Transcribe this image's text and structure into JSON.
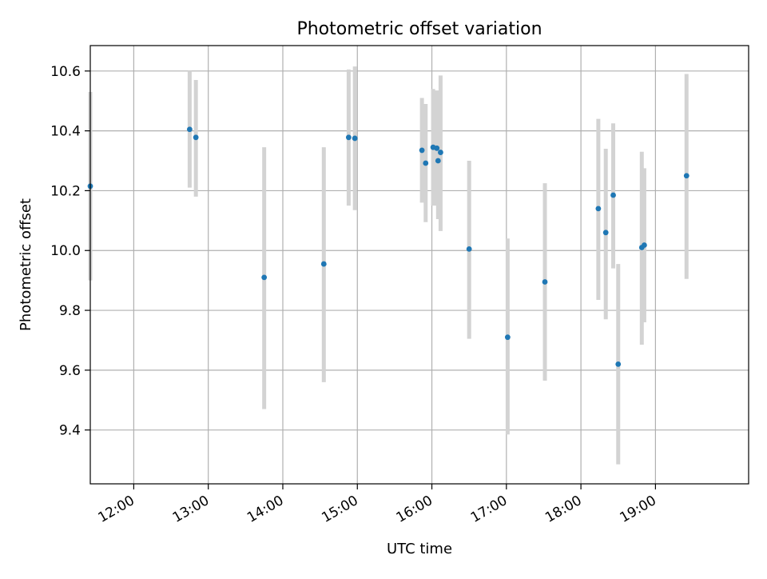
{
  "chart_data": {
    "type": "scatter",
    "title": "Photometric offset variation",
    "xlabel": "UTC time",
    "ylabel": "Photometric offset",
    "x_axis": {
      "kind": "time",
      "range": [
        "11:25",
        "20:15"
      ],
      "ticks": [
        "12:00",
        "13:00",
        "14:00",
        "15:00",
        "16:00",
        "17:00",
        "18:00",
        "19:00"
      ]
    },
    "y_axis": {
      "range": [
        9.22,
        10.685
      ],
      "ticks": [
        "9.4",
        "9.6",
        "9.8",
        "10.0",
        "10.2",
        "10.4",
        "10.6"
      ]
    },
    "grid": true,
    "series": [
      {
        "marker_color": "#1f77b4",
        "errorbar_color": "#d3d3d3",
        "points": [
          {
            "time": "11:25",
            "y": 10.215,
            "lo": 9.9,
            "hi": 10.53
          },
          {
            "time": "12:45",
            "y": 10.405,
            "lo": 10.21,
            "hi": 10.6
          },
          {
            "time": "12:50",
            "y": 10.378,
            "lo": 10.18,
            "hi": 10.57
          },
          {
            "time": "13:45",
            "y": 9.91,
            "lo": 9.47,
            "hi": 10.345
          },
          {
            "time": "14:33",
            "y": 9.955,
            "lo": 9.56,
            "hi": 10.345
          },
          {
            "time": "14:53",
            "y": 10.378,
            "lo": 10.15,
            "hi": 10.605
          },
          {
            "time": "14:58",
            "y": 10.375,
            "lo": 10.135,
            "hi": 10.615
          },
          {
            "time": "15:52",
            "y": 10.335,
            "lo": 10.16,
            "hi": 10.51
          },
          {
            "time": "15:55",
            "y": 10.292,
            "lo": 10.095,
            "hi": 10.49
          },
          {
            "time": "16:01",
            "y": 10.345,
            "lo": 10.15,
            "hi": 10.54
          },
          {
            "time": "16:04",
            "y": 10.342,
            "lo": 10.15,
            "hi": 10.535
          },
          {
            "time": "16:05",
            "y": 10.3,
            "lo": 10.105,
            "hi": 10.53
          },
          {
            "time": "16:07",
            "y": 10.328,
            "lo": 10.065,
            "hi": 10.585
          },
          {
            "time": "16:30",
            "y": 10.005,
            "lo": 9.705,
            "hi": 10.3
          },
          {
            "time": "17:01",
            "y": 9.71,
            "lo": 9.385,
            "hi": 10.04
          },
          {
            "time": "17:31",
            "y": 9.895,
            "lo": 9.565,
            "hi": 10.225
          },
          {
            "time": "18:14",
            "y": 10.14,
            "lo": 9.835,
            "hi": 10.44
          },
          {
            "time": "18:20",
            "y": 10.06,
            "lo": 9.77,
            "hi": 10.34
          },
          {
            "time": "18:26",
            "y": 10.185,
            "lo": 9.94,
            "hi": 10.425
          },
          {
            "time": "18:30",
            "y": 9.62,
            "lo": 9.285,
            "hi": 9.955
          },
          {
            "time": "18:49",
            "y": 10.01,
            "lo": 9.685,
            "hi": 10.33
          },
          {
            "time": "18:51",
            "y": 10.018,
            "lo": 9.76,
            "hi": 10.275
          },
          {
            "time": "19:25",
            "y": 10.25,
            "lo": 9.905,
            "hi": 10.59
          }
        ]
      }
    ]
  }
}
